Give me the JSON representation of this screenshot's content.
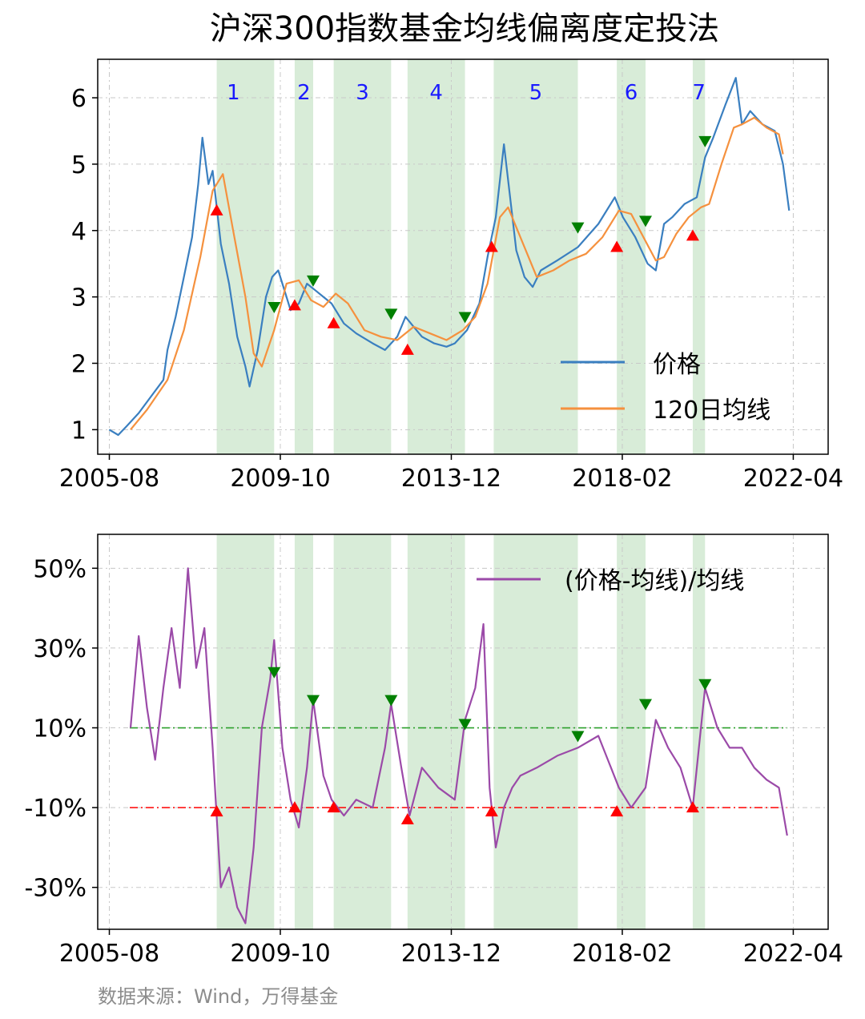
{
  "title": "沪深300指数基金均线偏离度定投法",
  "source": "数据来源：Wind，万得基金",
  "colors": {
    "price": "#3a7fc0",
    "ma": "#f5913e",
    "deviation": "#9b4aa8",
    "shade": "#d8ecd8",
    "buy_marker": "#ff0000",
    "sell_marker": "#008000",
    "upper_line": "#2ca02c",
    "lower_line": "#ff0000",
    "period_label": "#1a1aff"
  },
  "chart_data": [
    {
      "type": "line",
      "x_ticks": [
        "2005-08",
        "2009-10",
        "2013-12",
        "2018-02",
        "2022-04"
      ],
      "xlim": [
        2005.3,
        2023.1
      ],
      "y_ticks": [
        "1",
        "2",
        "3",
        "4",
        "5",
        "6"
      ],
      "ylim": [
        0.63,
        6.58
      ],
      "grid": true,
      "legend_position": "right-middle",
      "shaded_periods": [
        {
          "label": "1",
          "start": 2008.2,
          "end": 2009.6
        },
        {
          "label": "2",
          "start": 2010.1,
          "end": 2010.55
        },
        {
          "label": "3",
          "start": 2011.05,
          "end": 2012.45
        },
        {
          "label": "4",
          "start": 2012.85,
          "end": 2014.25
        },
        {
          "label": "5",
          "start": 2014.95,
          "end": 2017.0
        },
        {
          "label": "6",
          "start": 2017.95,
          "end": 2018.65
        },
        {
          "label": "7",
          "start": 2019.8,
          "end": 2020.1
        }
      ],
      "series": [
        {
          "name": "价格",
          "x": [
            2005.58,
            2005.8,
            2006.0,
            2006.3,
            2006.6,
            2006.9,
            2007.0,
            2007.2,
            2007.4,
            2007.6,
            2007.75,
            2007.85,
            2008.0,
            2008.1,
            2008.3,
            2008.5,
            2008.7,
            2008.9,
            2009.0,
            2009.2,
            2009.4,
            2009.55,
            2009.7,
            2009.9,
            2010.0,
            2010.2,
            2010.4,
            2010.6,
            2010.8,
            2011.0,
            2011.3,
            2011.6,
            2012.0,
            2012.3,
            2012.6,
            2012.8,
            2013.0,
            2013.2,
            2013.5,
            2013.8,
            2014.0,
            2014.3,
            2014.6,
            2014.8,
            2015.0,
            2015.2,
            2015.35,
            2015.5,
            2015.7,
            2015.9,
            2016.1,
            2016.5,
            2017.0,
            2017.5,
            2017.9,
            2018.1,
            2018.4,
            2018.7,
            2018.9,
            2019.1,
            2019.3,
            2019.6,
            2019.9,
            2020.1,
            2020.3,
            2020.6,
            2020.85,
            2021.0,
            2021.2,
            2021.5,
            2021.8,
            2022.0,
            2022.15
          ],
          "values": [
            1.0,
            0.92,
            1.05,
            1.25,
            1.5,
            1.75,
            2.2,
            2.7,
            3.3,
            3.9,
            4.7,
            5.4,
            4.7,
            4.9,
            3.8,
            3.2,
            2.4,
            1.95,
            1.65,
            2.2,
            3.0,
            3.3,
            3.4,
            3.0,
            2.8,
            2.9,
            3.2,
            3.1,
            3.0,
            2.9,
            2.6,
            2.45,
            2.3,
            2.2,
            2.4,
            2.7,
            2.55,
            2.4,
            2.3,
            2.25,
            2.3,
            2.5,
            2.9,
            3.6,
            4.2,
            5.3,
            4.5,
            3.7,
            3.3,
            3.15,
            3.4,
            3.55,
            3.75,
            4.1,
            4.5,
            4.2,
            3.9,
            3.5,
            3.4,
            4.1,
            4.2,
            4.4,
            4.5,
            5.1,
            5.4,
            5.9,
            6.3,
            5.6,
            5.8,
            5.6,
            5.5,
            5.0,
            4.3
          ]
        },
        {
          "name": "120日均线",
          "x": [
            2006.1,
            2006.5,
            2007.0,
            2007.4,
            2007.8,
            2008.1,
            2008.35,
            2008.6,
            2008.9,
            2009.1,
            2009.3,
            2009.6,
            2009.9,
            2010.2,
            2010.5,
            2010.8,
            2011.1,
            2011.4,
            2011.8,
            2012.2,
            2012.6,
            2013.0,
            2013.4,
            2013.8,
            2014.2,
            2014.5,
            2014.8,
            2015.1,
            2015.3,
            2015.6,
            2016.0,
            2016.4,
            2016.8,
            2017.2,
            2017.6,
            2018.0,
            2018.3,
            2018.6,
            2018.9,
            2019.1,
            2019.4,
            2019.7,
            2020.0,
            2020.2,
            2020.5,
            2020.8,
            2021.0,
            2021.3,
            2021.6,
            2021.9,
            2022.0
          ],
          "values": [
            1.0,
            1.3,
            1.75,
            2.5,
            3.6,
            4.6,
            4.85,
            4.0,
            3.0,
            2.15,
            1.95,
            2.5,
            3.2,
            3.25,
            2.95,
            2.85,
            3.05,
            2.9,
            2.5,
            2.4,
            2.35,
            2.55,
            2.45,
            2.35,
            2.5,
            2.7,
            3.2,
            4.2,
            4.35,
            3.9,
            3.3,
            3.4,
            3.55,
            3.65,
            3.9,
            4.3,
            4.25,
            3.9,
            3.55,
            3.6,
            3.95,
            4.2,
            4.35,
            4.4,
            5.0,
            5.55,
            5.6,
            5.7,
            5.55,
            5.45,
            5.15
          ]
        }
      ],
      "buy_signals": [
        [
          2008.2,
          4.3
        ],
        [
          2010.1,
          2.87
        ],
        [
          2011.05,
          2.6
        ],
        [
          2012.85,
          2.2
        ],
        [
          2014.9,
          3.75
        ],
        [
          2017.95,
          3.75
        ],
        [
          2019.8,
          3.92
        ]
      ],
      "sell_signals": [
        [
          2009.6,
          2.85
        ],
        [
          2010.55,
          3.25
        ],
        [
          2012.45,
          2.75
        ],
        [
          2014.25,
          2.7
        ],
        [
          2017.0,
          4.05
        ],
        [
          2018.65,
          4.15
        ],
        [
          2020.1,
          5.35
        ]
      ]
    },
    {
      "type": "line",
      "x_ticks": [
        "2005-08",
        "2009-10",
        "2013-12",
        "2018-02",
        "2022-04"
      ],
      "xlim": [
        2005.3,
        2023.1
      ],
      "y_ticks": [
        "50%",
        "30%",
        "10%",
        "-10%",
        "-30%"
      ],
      "y_tick_values": [
        50,
        30,
        10,
        -10,
        -30
      ],
      "ylim": [
        -40.5,
        58.5
      ],
      "grid": true,
      "legend_position": "top-right",
      "reference_lines": [
        {
          "value": 10,
          "color": "#2ca02c"
        },
        {
          "value": -10,
          "color": "#ff0000"
        }
      ],
      "series": [
        {
          "name": "(价格-均线)/均线",
          "x": [
            2006.1,
            2006.3,
            2006.5,
            2006.7,
            2006.9,
            2007.1,
            2007.3,
            2007.5,
            2007.7,
            2007.9,
            2008.1,
            2008.3,
            2008.5,
            2008.7,
            2008.9,
            2009.1,
            2009.3,
            2009.5,
            2009.6,
            2009.8,
            2010.0,
            2010.2,
            2010.4,
            2010.55,
            2010.8,
            2011.0,
            2011.3,
            2011.6,
            2012.0,
            2012.3,
            2012.45,
            2012.7,
            2012.9,
            2013.2,
            2013.6,
            2014.0,
            2014.25,
            2014.5,
            2014.7,
            2014.85,
            2015.0,
            2015.2,
            2015.4,
            2015.6,
            2016.0,
            2016.5,
            2017.0,
            2017.5,
            2018.0,
            2018.3,
            2018.65,
            2018.9,
            2019.2,
            2019.5,
            2019.8,
            2020.1,
            2020.4,
            2020.7,
            2021.0,
            2021.3,
            2021.6,
            2021.9,
            2022.1
          ],
          "values": [
            10,
            33,
            15,
            2,
            20,
            35,
            20,
            50,
            25,
            35,
            5,
            -30,
            -25,
            -35,
            -39,
            -20,
            10,
            22,
            32,
            5,
            -8,
            -15,
            0,
            17,
            -2,
            -8,
            -12,
            -8,
            -10,
            5,
            16,
            0,
            -12,
            0,
            -5,
            -8,
            12,
            20,
            36,
            -5,
            -20,
            -10,
            -5,
            -2,
            0,
            3,
            5,
            8,
            -5,
            -10,
            -5,
            12,
            5,
            0,
            -10,
            20,
            10,
            5,
            5,
            0,
            -3,
            -5,
            -17
          ]
        }
      ],
      "buy_signals": [
        [
          2008.2,
          -11
        ],
        [
          2010.1,
          -10
        ],
        [
          2011.05,
          -10
        ],
        [
          2012.85,
          -13
        ],
        [
          2014.9,
          -11
        ],
        [
          2017.95,
          -11
        ],
        [
          2019.8,
          -10
        ]
      ],
      "sell_signals": [
        [
          2009.6,
          24
        ],
        [
          2010.55,
          17
        ],
        [
          2012.45,
          17
        ],
        [
          2014.25,
          11
        ],
        [
          2017.0,
          8
        ],
        [
          2018.65,
          16
        ],
        [
          2020.1,
          21
        ]
      ]
    }
  ]
}
